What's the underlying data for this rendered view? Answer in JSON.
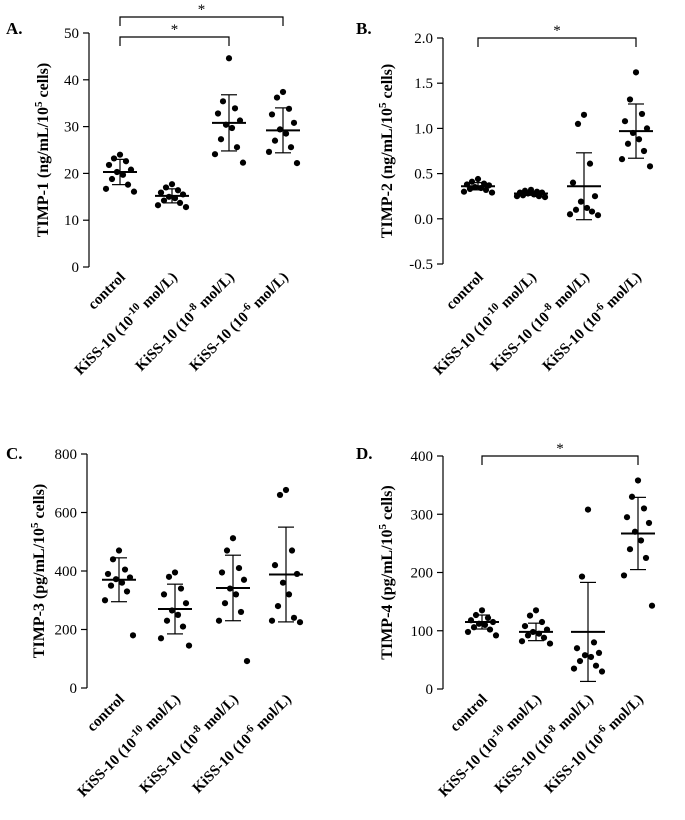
{
  "chart_data": [
    {
      "type": "scatter",
      "panel": "A.",
      "ylabel": "TIMP-1 (ng/mL/10^5 cells)",
      "ylabel_parts": {
        "main": "TIMP-1 (ng/mL/10",
        "sup": "5",
        "tail": " cells)"
      },
      "ylim": [
        0,
        50
      ],
      "yticks": [
        "0",
        "10",
        "20",
        "30",
        "40",
        "50"
      ],
      "ytick_values": [
        0,
        10,
        20,
        30,
        40,
        50
      ],
      "categories": [
        {
          "pre": "control"
        },
        {
          "pre": "KiSS-10 (10",
          "sup": "-10",
          "post": " mol/L)"
        },
        {
          "pre": "KiSS-10 (10",
          "sup": "-8",
          "post": " mol/L)"
        },
        {
          "pre": "KiSS-10 (10",
          "sup": "-6",
          "post": " mol/L)"
        }
      ],
      "groups": [
        {
          "mean": 20.3,
          "sd": 2.7,
          "points": [
            24.0,
            23.2,
            22.6,
            21.8,
            20.8,
            20.3,
            19.7,
            18.8,
            17.6,
            16.7,
            16.1
          ]
        },
        {
          "mean": 15.2,
          "sd": 1.5,
          "points": [
            17.7,
            17.0,
            16.4,
            15.9,
            15.5,
            15.0,
            14.7,
            14.2,
            13.7,
            13.2,
            12.8
          ]
        },
        {
          "mean": 30.8,
          "sd": 6.0,
          "points": [
            44.6,
            35.4,
            33.9,
            32.8,
            31.3,
            30.4,
            29.7,
            27.3,
            25.6,
            24.1,
            22.3
          ]
        },
        {
          "mean": 29.2,
          "sd": 4.8,
          "points": [
            37.4,
            36.2,
            33.8,
            32.6,
            30.8,
            29.4,
            28.5,
            27.0,
            25.6,
            24.6,
            22.2
          ]
        }
      ],
      "significance": [
        {
          "from": 0,
          "to": 3,
          "label": "*"
        },
        {
          "from": 0,
          "to": 2,
          "label": "*"
        }
      ]
    },
    {
      "type": "scatter",
      "panel": "B.",
      "ylabel": "TIMP-2 (ng/mL/10^5 cells)",
      "ylabel_parts": {
        "main": "TIMP-2 (ng/mL/10",
        "sup": "5",
        "tail": " cells)"
      },
      "ylim": [
        -0.5,
        2.0
      ],
      "yticks": [
        "-0.5",
        "0.0",
        "0.5",
        "1.0",
        "1.5",
        "2.0"
      ],
      "ytick_values": [
        -0.5,
        0.0,
        0.5,
        1.0,
        1.5,
        2.0
      ],
      "categories": [
        {
          "pre": "control"
        },
        {
          "pre": "KiSS-10 (10",
          "sup": "-10",
          "post": " mol/L)"
        },
        {
          "pre": "KiSS-10 (10",
          "sup": "-8",
          "post": " mol/L)"
        },
        {
          "pre": "KiSS-10 (10",
          "sup": "-6",
          "post": " mol/L)"
        }
      ],
      "groups": [
        {
          "mean": 0.36,
          "sd": 0.04,
          "points": [
            0.44,
            0.41,
            0.39,
            0.38,
            0.37,
            0.35,
            0.34,
            0.33,
            0.32,
            0.3,
            0.29
          ]
        },
        {
          "mean": 0.28,
          "sd": 0.02,
          "points": [
            0.32,
            0.31,
            0.3,
            0.29,
            0.29,
            0.28,
            0.27,
            0.26,
            0.25,
            0.25,
            0.24
          ]
        },
        {
          "mean": 0.36,
          "sd": 0.37,
          "points": [
            1.15,
            1.05,
            0.61,
            0.4,
            0.25,
            0.19,
            0.12,
            0.1,
            0.08,
            0.05,
            0.04
          ]
        },
        {
          "mean": 0.97,
          "sd": 0.3,
          "points": [
            1.62,
            1.32,
            1.16,
            1.08,
            1.0,
            0.95,
            0.88,
            0.83,
            0.75,
            0.66,
            0.58
          ]
        }
      ],
      "significance": [
        {
          "from": 0,
          "to": 3,
          "label": "*"
        }
      ]
    },
    {
      "type": "scatter",
      "panel": "C.",
      "ylabel": "TIMP-3 (pg/mL/10^5 cells)",
      "ylabel_parts": {
        "main": "TIMP-3 (pg/mL/10",
        "sup": "5",
        "tail": " cells)"
      },
      "ylim": [
        0,
        800
      ],
      "yticks": [
        "0",
        "200",
        "400",
        "600",
        "800"
      ],
      "ytick_values": [
        0,
        200,
        400,
        600,
        800
      ],
      "categories": [
        {
          "pre": "control"
        },
        {
          "pre": "KiSS-10 (10",
          "sup": "-10",
          "post": " mol/L)"
        },
        {
          "pre": "KiSS-10 (10",
          "sup": "-8",
          "post": " mol/L)"
        },
        {
          "pre": "KiSS-10 (10",
          "sup": "-6",
          "post": " mol/L)"
        }
      ],
      "groups": [
        {
          "mean": 370,
          "sd": 75,
          "points": [
            470,
            440,
            405,
            390,
            378,
            372,
            360,
            350,
            330,
            300,
            180
          ]
        },
        {
          "mean": 270,
          "sd": 85,
          "points": [
            395,
            380,
            340,
            320,
            290,
            265,
            250,
            230,
            210,
            170,
            145
          ]
        },
        {
          "mean": 342,
          "sd": 112,
          "points": [
            512,
            470,
            410,
            395,
            370,
            340,
            320,
            290,
            260,
            230,
            92
          ]
        },
        {
          "mean": 388,
          "sd": 162,
          "points": [
            677,
            660,
            470,
            420,
            390,
            360,
            320,
            280,
            240,
            230,
            225
          ]
        }
      ],
      "significance": []
    },
    {
      "type": "scatter",
      "panel": "D.",
      "ylabel": "TIMP-4 (pg/mL/10^5 cells)",
      "ylabel_parts": {
        "main": "TIMP-4 (pg/mL/10",
        "sup": "5",
        "tail": " cells)"
      },
      "ylim": [
        0,
        400
      ],
      "yticks": [
        "0",
        "100",
        "200",
        "300",
        "400"
      ],
      "ytick_values": [
        0,
        100,
        200,
        300,
        400
      ],
      "categories": [
        {
          "pre": "control"
        },
        {
          "pre": "KiSS-10 (10",
          "sup": "-10",
          "post": " mol/L)"
        },
        {
          "pre": "KiSS-10 (10",
          "sup": "-8",
          "post": " mol/L)"
        },
        {
          "pre": "KiSS-10 (10",
          "sup": "-6",
          "post": " mol/L)"
        }
      ],
      "groups": [
        {
          "mean": 115,
          "sd": 12,
          "points": [
            135,
            127,
            122,
            118,
            115,
            112,
            110,
            106,
            102,
            98,
            92
          ]
        },
        {
          "mean": 98,
          "sd": 15,
          "points": [
            135,
            126,
            115,
            108,
            102,
            98,
            95,
            92,
            88,
            82,
            78
          ]
        },
        {
          "mean": 98,
          "sd": 85,
          "points": [
            308,
            193,
            80,
            70,
            62,
            58,
            55,
            48,
            40,
            35,
            30
          ]
        },
        {
          "mean": 267,
          "sd": 62,
          "points": [
            358,
            330,
            310,
            295,
            285,
            270,
            255,
            240,
            225,
            195,
            143
          ]
        }
      ],
      "significance": [
        {
          "from": 0,
          "to": 3,
          "label": "*"
        }
      ]
    }
  ]
}
